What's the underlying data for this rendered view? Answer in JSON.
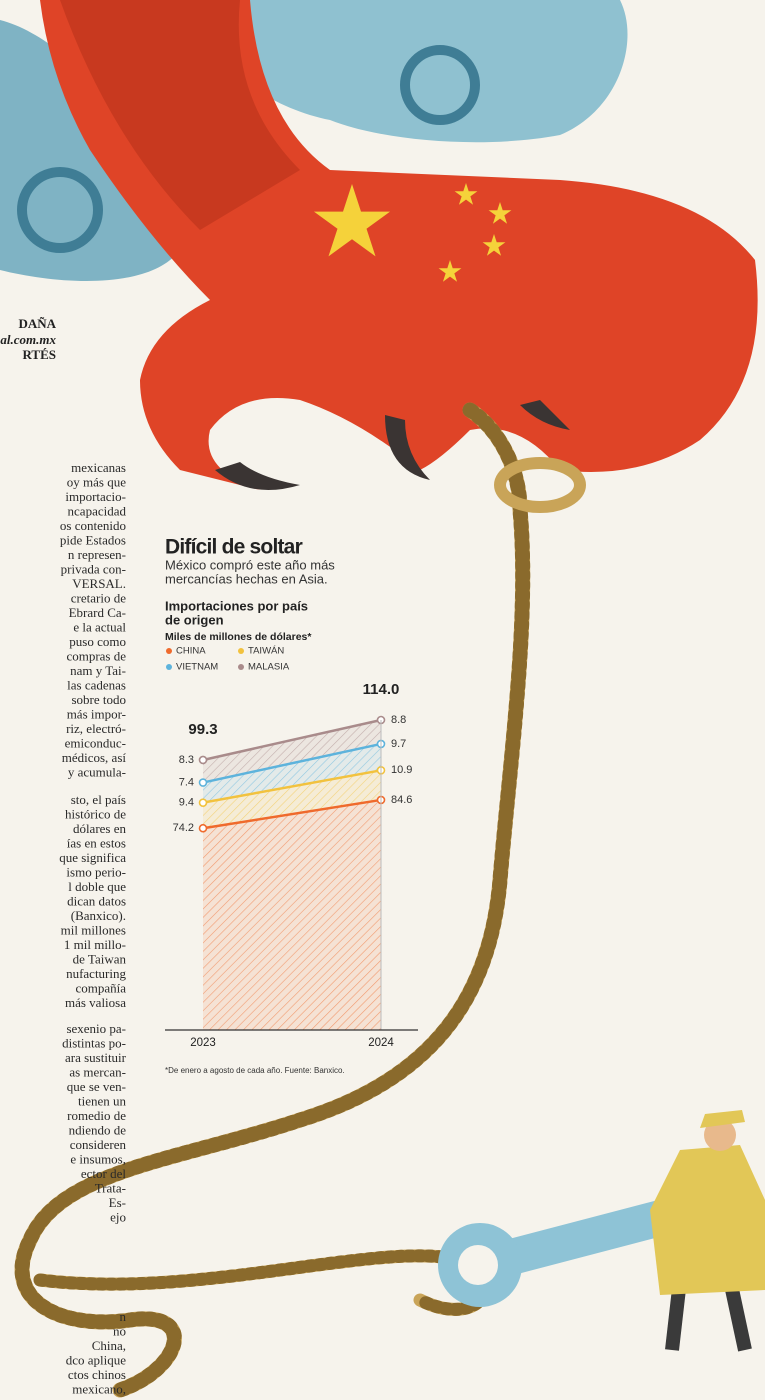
{
  "header": {
    "byline": [
      "DAÑA",
      "al.com.mx",
      "RTÉS"
    ]
  },
  "article": {
    "paragraphs": [
      [
        "mexicanas",
        "oy más que",
        "importacio-",
        "ncapacidad",
        "os contenido",
        "pide Estados",
        "n represen-",
        "privada con-",
        "VERSAL.",
        "cretario de",
        "Ebrard Ca-",
        "e la actual",
        "puso como",
        "compras de",
        "nam y Tai-",
        "las cadenas",
        "sobre todo",
        "más impor-",
        "riz, electró-",
        "emiconduc-",
        "médicos, así",
        "y acumula-"
      ],
      [
        "sto, el país",
        "histórico de",
        "dólares en",
        "ías en estos",
        "que significa",
        "ismo perio-",
        "l doble que",
        "dican datos",
        "(Banxico).",
        "mil millones",
        "1 mil millo-",
        "de Taiwan",
        "nufacturing",
        "compañía",
        "más valiosa"
      ],
      [
        "sexenio pa-",
        "distintas po-",
        "ara sustituir",
        "as mercan-",
        "que se ven-",
        "tienen un",
        "romedio de",
        "ndiendo de",
        "consideren",
        "e insumos,",
        "ector del",
        "Trata-",
        "Es-",
        "ejo"
      ],
      [
        "n",
        "no",
        "China,",
        "dco aplique",
        "ctos chinos",
        "mexicano,"
      ]
    ]
  },
  "chart_data": {
    "type": "area",
    "stacked": true,
    "title": "Difícil de soltar",
    "subtitle": [
      "México compró este año más",
      "mercancías hechas en Asia."
    ],
    "chart_title": [
      "Importaciones por país",
      "de origen"
    ],
    "y_label": "Miles de millones de dólares*",
    "note": "*De enero a agosto de cada año. Fuente: Banxico.",
    "categories": [
      "2023",
      "2024"
    ],
    "series": [
      {
        "name": "CHINA",
        "color": "#ef6a2c",
        "values": [
          74.2,
          84.6
        ]
      },
      {
        "name": "TAIWÁN",
        "color": "#f2c23e",
        "values": [
          9.4,
          10.9
        ]
      },
      {
        "name": "VIETNAM",
        "color": "#5db3dc",
        "values": [
          7.4,
          9.7
        ]
      },
      {
        "name": "MALASIA",
        "color": "#a98b8b",
        "values": [
          8.3,
          8.8
        ]
      }
    ],
    "totals": {
      "values": [
        99.3,
        114
      ],
      "value_labels": [
        "99.3",
        "114.0"
      ]
    },
    "ylim": [
      0,
      114
    ]
  }
}
